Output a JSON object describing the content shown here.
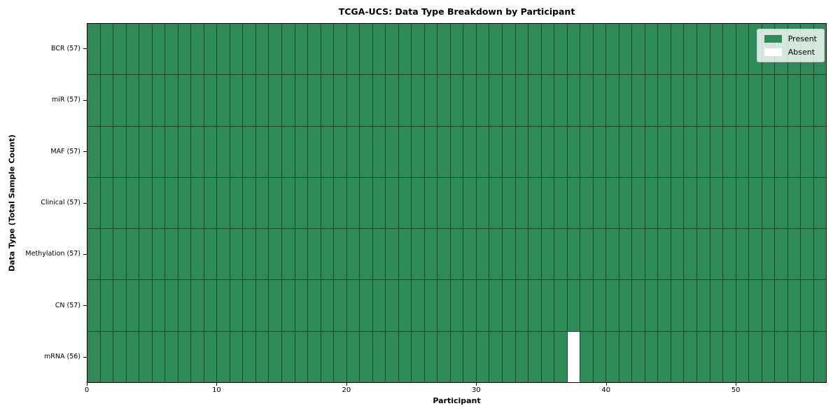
{
  "chart_data": {
    "type": "heatmap",
    "title": "TCGA-UCS: Data Type Breakdown by Participant",
    "xlabel": "Participant",
    "ylabel": "Data Type (Total Sample Count)",
    "x_range": [
      0,
      57
    ],
    "x_ticks": [
      0,
      10,
      20,
      30,
      40,
      50
    ],
    "n_participants": 57,
    "grid": true,
    "legend_position": "upper right",
    "rows": [
      {
        "label": "BCR (57)",
        "data_type": "BCR",
        "total_samples": 57,
        "absent_participants": []
      },
      {
        "label": "miR (57)",
        "data_type": "miR",
        "total_samples": 57,
        "absent_participants": []
      },
      {
        "label": "MAF (57)",
        "data_type": "MAF",
        "total_samples": 57,
        "absent_participants": []
      },
      {
        "label": "Clinical (57)",
        "data_type": "Clinical",
        "total_samples": 57,
        "absent_participants": []
      },
      {
        "label": "Methylation (57)",
        "data_type": "Methylation",
        "total_samples": 57,
        "absent_participants": []
      },
      {
        "label": "CN (57)",
        "data_type": "CN",
        "total_samples": 57,
        "absent_participants": []
      },
      {
        "label": "mRNA (56)",
        "data_type": "mRNA",
        "total_samples": 56,
        "absent_participants": [
          37
        ]
      }
    ],
    "legend_items": [
      {
        "label": "Present",
        "color": "#2e8b57"
      },
      {
        "label": "Absent",
        "color": "#ffffff"
      }
    ],
    "colors": {
      "present": "#2e8b57",
      "absent": "#ffffff",
      "cell_border": "#1d4631",
      "plot_border": "#000000"
    }
  }
}
